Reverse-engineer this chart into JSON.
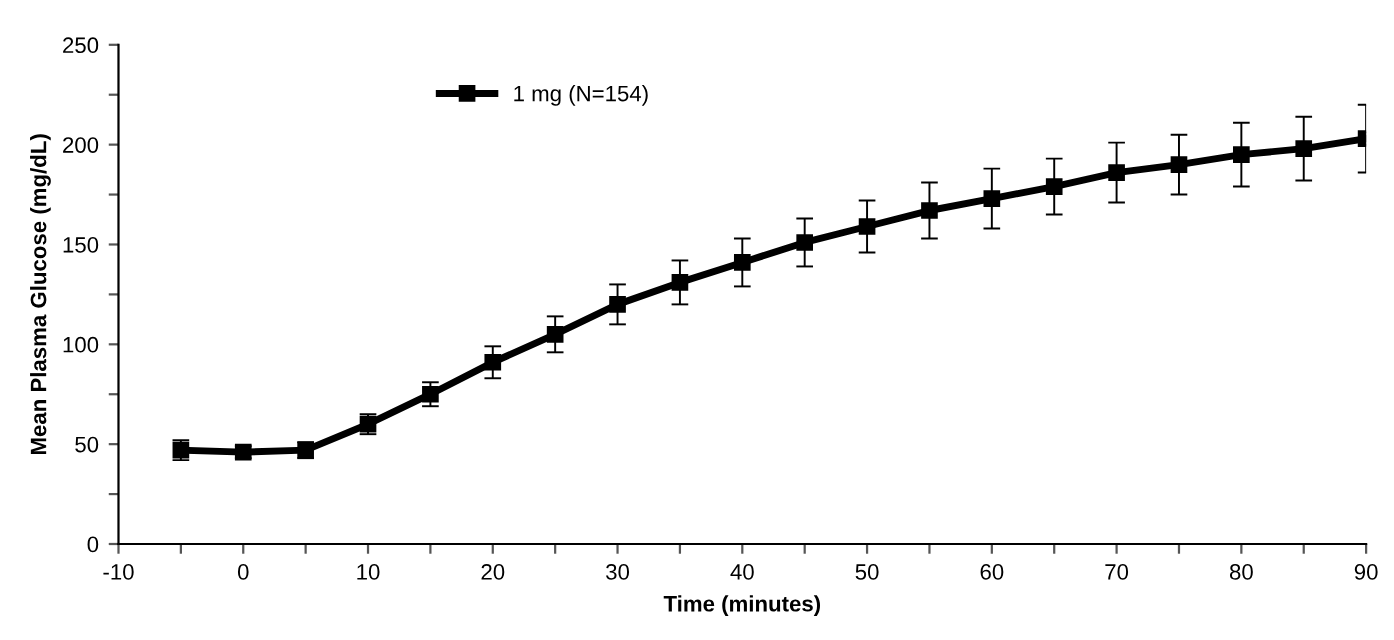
{
  "chart_data": {
    "type": "line",
    "xlabel": "Time (minutes)",
    "ylabel": "Mean Plasma Glucose (mg/dL)",
    "x": [
      -5,
      0,
      5,
      10,
      15,
      20,
      25,
      30,
      35,
      40,
      45,
      50,
      55,
      60,
      65,
      70,
      75,
      80,
      85,
      90
    ],
    "series": [
      {
        "name": "1 mg (N=154)",
        "color": "#000000",
        "values": [
          47,
          46,
          47,
          60,
          75,
          91,
          105,
          120,
          131,
          141,
          151,
          159,
          167,
          173,
          179,
          186,
          190,
          195,
          198,
          203
        ],
        "errors": [
          5,
          3,
          4,
          5,
          6,
          8,
          9,
          10,
          11,
          12,
          12,
          13,
          14,
          15,
          14,
          15,
          15,
          16,
          16,
          17
        ]
      }
    ],
    "xlim": [
      -10,
      90
    ],
    "ylim": [
      0,
      250
    ],
    "xticks": [
      -10,
      {
        "value": -5,
        "label": null
      },
      0,
      {
        "value": 5,
        "label": null
      },
      10,
      {
        "value": 15,
        "label": null
      },
      20,
      {
        "value": 25,
        "label": null
      },
      30,
      {
        "value": 35,
        "label": null
      },
      40,
      {
        "value": 45,
        "label": null
      },
      50,
      {
        "value": 55,
        "label": null
      },
      60,
      {
        "value": 65,
        "label": null
      },
      70,
      {
        "value": 75,
        "label": null
      },
      80,
      {
        "value": 85,
        "label": null
      },
      90
    ],
    "yticks": [
      0,
      {
        "value": 25,
        "label": null
      },
      50,
      {
        "value": 75,
        "label": null
      },
      100,
      {
        "value": 125,
        "label": null
      },
      150,
      {
        "value": 175,
        "label": null
      },
      200,
      {
        "value": 225,
        "label": null
      },
      250
    ],
    "marker": "square",
    "line_style": "solid",
    "grid": false,
    "legend": "top left"
  }
}
